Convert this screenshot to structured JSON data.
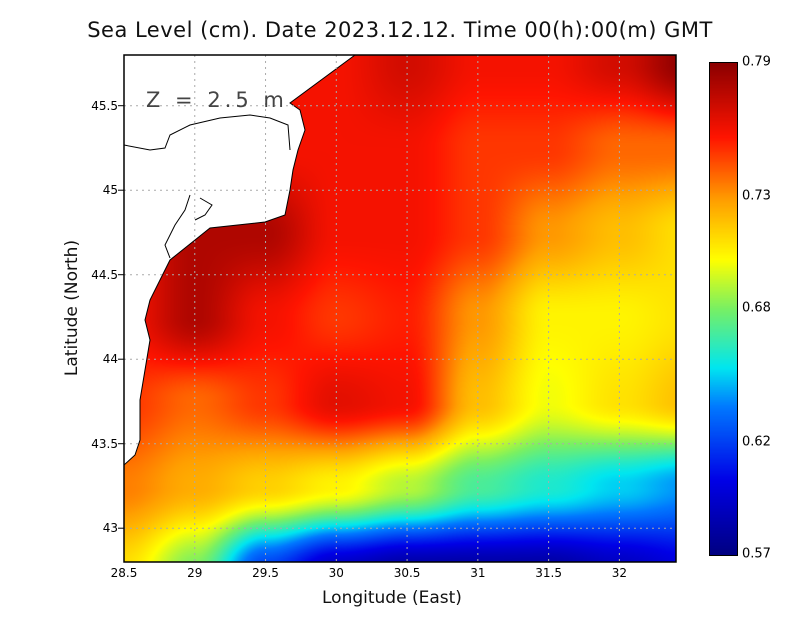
{
  "chart_data": {
    "type": "heatmap",
    "title": "Sea Level (cm). Date 2023.12.12. Time 00(h):00(m) GMT",
    "xlabel": "Longitude (East)",
    "ylabel": "Latitude (North)",
    "annotation": "Z = 2.5 m",
    "xlim": [
      28.5,
      32.4
    ],
    "ylim": [
      42.8,
      45.8
    ],
    "xticks": [
      "28.5",
      "29",
      "29.5",
      "30",
      "30.5",
      "31",
      "31.5",
      "32"
    ],
    "xtick_values": [
      28.5,
      29,
      29.5,
      30,
      30.5,
      31,
      31.5,
      32
    ],
    "yticks": [
      "45.5",
      "45",
      "44.5",
      "44",
      "43.5",
      "43"
    ],
    "ytick_values": [
      45.5,
      45,
      44.5,
      44,
      43.5,
      43
    ],
    "grid": true,
    "colorbar": {
      "min": 0.57,
      "max": 0.79,
      "labels": [
        "0.79",
        "0.73",
        "0.68",
        "0.62",
        "0.57"
      ],
      "label_values": [
        0.79,
        0.73,
        0.68,
        0.62,
        0.57
      ]
    },
    "grid_lon": [
      28.5,
      29,
      29.5,
      30,
      30.5,
      31,
      31.5,
      32,
      32.5
    ],
    "grid_lat": [
      45.75,
      45.25,
      44.75,
      44.25,
      43.75,
      43.25,
      42.75
    ],
    "values": [
      [
        0.76,
        0.76,
        0.76,
        0.76,
        0.77,
        0.76,
        0.76,
        0.77,
        0.79
      ],
      [
        0.76,
        0.76,
        0.76,
        0.76,
        0.76,
        0.75,
        0.75,
        0.74,
        0.74
      ],
      [
        0.76,
        0.78,
        0.78,
        0.76,
        0.76,
        0.75,
        0.73,
        0.72,
        0.71
      ],
      [
        0.76,
        0.78,
        0.76,
        0.75,
        0.755,
        0.73,
        0.705,
        0.705,
        0.71
      ],
      [
        0.75,
        0.74,
        0.75,
        0.765,
        0.76,
        0.72,
        0.7,
        0.71,
        0.72
      ],
      [
        0.735,
        0.725,
        0.715,
        0.705,
        0.69,
        0.67,
        0.66,
        0.65,
        0.64
      ],
      [
        0.71,
        0.68,
        0.62,
        0.59,
        0.58,
        0.58,
        0.58,
        0.59,
        0.6
      ]
    ]
  }
}
